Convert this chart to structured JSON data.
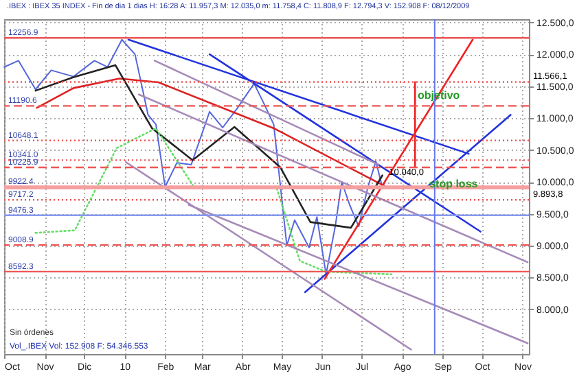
{
  "chart_data": {
    "type": "line",
    "title": ".IBEX : IBEX 35 INDEX - Fin de dia 1 dias  H: 16:28  A: 11.957,3  M: 12.035,0  m: 11.758,4  C: 11.808,9  F: 12.794,3  V: 152.908  F: 08/12/2009",
    "xlim": [
      "2009-10-01",
      "2010-11-06"
    ],
    "xticks": [
      {
        "value": "2009-10-01",
        "label": "Oct"
      },
      {
        "value": "2009-11-01",
        "label": "Nov"
      },
      {
        "value": "2009-12-01",
        "label": "Dic"
      },
      {
        "value": "2010-01-01",
        "label": "10"
      },
      {
        "value": "2010-02-01",
        "label": "Feb"
      },
      {
        "value": "2010-03-01",
        "label": "Mar"
      },
      {
        "value": "2010-04-01",
        "label": "Abr"
      },
      {
        "value": "2010-05-01",
        "label": "May"
      },
      {
        "value": "2010-06-01",
        "label": "Jun"
      },
      {
        "value": "2010-07-01",
        "label": "Jul"
      },
      {
        "value": "2010-08-01",
        "label": "Ago"
      },
      {
        "value": "2010-09-01",
        "label": "Sep"
      },
      {
        "value": "2010-10-01",
        "label": "Oct"
      },
      {
        "value": "2010-11-01",
        "label": "Nov"
      }
    ],
    "ylim": [
      7300,
      12550
    ],
    "yticks": [
      {
        "value": 8000,
        "label": "8.000,0"
      },
      {
        "value": 8500,
        "label": "8.500,0"
      },
      {
        "value": 9000,
        "label": "9.000,0"
      },
      {
        "value": 9500,
        "label": "9.500,0"
      },
      {
        "value": 10000,
        "label": "10.000,0"
      },
      {
        "value": 10500,
        "label": "10.500,0"
      },
      {
        "value": 11000,
        "label": "11.000,0"
      },
      {
        "value": 11500,
        "label": "11.500,0"
      },
      {
        "value": 12000,
        "label": "12.000,0"
      },
      {
        "value": 12500,
        "label": "12.500,0"
      }
    ],
    "grid": true,
    "series": [
      {
        "color": "#5566dd",
        "x": [
          "2009-10-01",
          "2009-10-12",
          "2009-10-25",
          "2009-11-06",
          "2009-11-23",
          "2009-12-09",
          "2009-12-19",
          "2009-12-30",
          "2010-01-09",
          "2010-01-19",
          "2010-01-25",
          "2010-02-01",
          "2010-02-10",
          "2010-02-21",
          "2010-03-07",
          "2010-03-17",
          "2010-03-28",
          "2010-04-10",
          "2010-04-17",
          "2010-04-25",
          "2010-05-02",
          "2010-05-05",
          "2010-05-11",
          "2010-05-22",
          "2010-05-28",
          "2010-06-04",
          "2010-06-11",
          "2010-06-16",
          "2010-06-22",
          "2010-06-29",
          "2010-07-06",
          "2010-07-12",
          "2010-07-17",
          "2010-07-20"
        ],
        "values": [
          11800,
          11900,
          11450,
          11750,
          11650,
          11900,
          11800,
          12230,
          12000,
          11050,
          10900,
          9920,
          10300,
          10270,
          11100,
          10850,
          11150,
          11540,
          11250,
          10900,
          9580,
          9000,
          9400,
          8970,
          9450,
          8550,
          9300,
          10000,
          9640,
          9300,
          9920,
          10320,
          9920,
          10040
        ]
      },
      {
        "color": "#dd2222",
        "x": [
          "2009-10-26",
          "2009-11-23",
          "2009-12-28",
          "2010-01-27",
          "2010-04-25",
          "2010-07-20"
        ],
        "values": [
          11160,
          11470,
          11620,
          11560,
          10840,
          9920
        ]
      },
      {
        "color": "#222222",
        "x": [
          "2009-10-25",
          "2009-11-23",
          "2009-12-25",
          "2010-01-22",
          "2010-02-22",
          "2010-03-26",
          "2010-04-30",
          "2010-05-23",
          "2010-06-23",
          "2010-07-17"
        ],
        "values": [
          11430,
          11640,
          11830,
          10840,
          10340,
          10860,
          10230,
          9370,
          9280,
          10100
        ]
      },
      {
        "color": "#66dd66",
        "line_style": "dotted",
        "x": [
          "2009-10-25",
          "2009-11-24",
          "2009-12-26",
          "2010-01-25",
          "2010-02-23",
          "2010-04-27",
          "2010-05-15",
          "2010-06-04",
          "2010-07-24"
        ],
        "values": [
          9200,
          9240,
          10530,
          10840,
          9920,
          9920,
          8760,
          8590,
          8550
        ]
      },
      {
        "color": "#2233dd",
        "x": [
          "2010-01-04",
          "2010-09-21"
        ],
        "values": [
          12230,
          10440
        ]
      },
      {
        "color": "#2233dd",
        "x": [
          "2010-03-07",
          "2010-09-30"
        ],
        "values": [
          12000,
          9220
        ]
      },
      {
        "color": "#2233dd",
        "x": [
          "2010-05-19",
          "2010-10-23"
        ],
        "values": [
          8270,
          11050
        ]
      },
      {
        "color": "#ee2222",
        "x": [
          "2010-06-03",
          "2010-09-24"
        ],
        "values": [
          8480,
          12230
        ]
      },
      {
        "color": "#ee2222",
        "x": [
          "2010-08-11",
          "2010-08-11"
        ],
        "values": [
          10225.9,
          11566.1
        ]
      },
      {
        "color": "#a68ab8",
        "x": [
          "2010-01-24",
          "2010-07-14"
        ],
        "values": [
          11900,
          10270
        ]
      },
      {
        "color": "#a68ab8",
        "x": [
          "2010-01-12",
          "2010-11-05"
        ],
        "values": [
          11370,
          8740
        ]
      },
      {
        "color": "#a68ab8",
        "x": [
          "2010-01-02",
          "2010-08-08"
        ],
        "values": [
          10310,
          7370
        ]
      },
      {
        "color": "#a68ab8",
        "x": [
          "2010-02-19",
          "2010-11-05"
        ],
        "values": [
          9640,
          7470
        ]
      }
    ],
    "ref_lines": [
      {
        "axis": "y",
        "value": 12256.9,
        "label": "12256.9",
        "color": "#ee5555",
        "line_style": "solid"
      },
      {
        "axis": "y",
        "value": 11566.1,
        "label": null,
        "color": "#ee5555",
        "line_style": "dotted"
      },
      {
        "axis": "y",
        "value": 11190.6,
        "label": "11190.6",
        "color": "#ee5555",
        "line_style": "dashed"
      },
      {
        "axis": "y",
        "value": 10648.1,
        "label": "10648.1",
        "color": "#ee5555",
        "line_style": "dotted"
      },
      {
        "axis": "y",
        "value": 10341.0,
        "label": "10341.0",
        "color": "#ee5555",
        "line_style": "dotted"
      },
      {
        "axis": "y",
        "value": 10225.9,
        "label": "10225.9",
        "color": "#ee5555",
        "line_style": "dashed"
      },
      {
        "axis": "y",
        "value": 9922.4,
        "label": "9922.4",
        "color": "#f4a0a0",
        "line_style": "solid"
      },
      {
        "axis": "y",
        "value": 9893.8,
        "label": null,
        "color": "#f4a0a0",
        "line_style": "solid"
      },
      {
        "axis": "y",
        "value": 9717.2,
        "label": "9717.2",
        "color": "#ee5555",
        "line_style": "dotted"
      },
      {
        "axis": "y",
        "value": 9476.3,
        "label": "9476.3",
        "color": "#8899ee",
        "line_style": "solid"
      },
      {
        "axis": "y",
        "value": 9008.9,
        "label": "9008.9",
        "color": "#ee5555",
        "line_style": "dashed"
      },
      {
        "axis": "y",
        "value": 8592.3,
        "label": "8592.3",
        "color": "#ee5555",
        "line_style": "solid"
      },
      {
        "axis": "x",
        "value": "2010-08-26",
        "label": null,
        "color": "#6677ee",
        "line_style": "solid"
      }
    ],
    "annotations": [
      {
        "text": "objetivo",
        "x": "2010-08-13",
        "y": 11350
      },
      {
        "text": "stop loss",
        "x": "2010-08-22",
        "y": 9960
      },
      {
        "text": "11.566,1",
        "x": "2010-11-06",
        "y": 11566.1
      },
      {
        "text": "10.040,0",
        "x": "2010-07-20",
        "y": 10040
      },
      {
        "text": "9.893,8",
        "x": "2010-11-06",
        "y": 9893.8
      },
      "Sin órdenes",
      "Vol_.IBEX Vol: 152.908 F: 54.346.553"
    ]
  }
}
